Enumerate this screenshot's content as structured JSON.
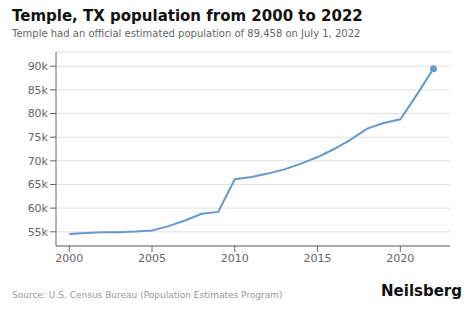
{
  "chart_data": {
    "type": "line",
    "title": "Temple, TX population from 2000 to 2022",
    "subtitle": "Temple had an official estimated population of 89,458 on July 1, 2022",
    "annotations": [
      "Source: U.S. Census Bureau (Population Estimates Program)",
      "Neilsberg"
    ],
    "x": [
      2000,
      2001,
      2002,
      2003,
      2004,
      2005,
      2006,
      2007,
      2008,
      2009,
      2010,
      2011,
      2012,
      2013,
      2014,
      2015,
      2016,
      2017,
      2018,
      2019,
      2020,
      2021,
      2022
    ],
    "values": [
      54514,
      54741,
      54898,
      54900,
      55050,
      55300,
      56200,
      57400,
      58800,
      59200,
      66102,
      66600,
      67300,
      68200,
      69400,
      70800,
      72500,
      74500,
      76800,
      78000,
      78780,
      84000,
      89458
    ],
    "color": "#6699cc",
    "xlim": [
      1999.2,
      2023.0
    ],
    "xticks": [
      2000,
      2005,
      2010,
      2015,
      2020
    ],
    "ylim": [
      52000,
      93000
    ],
    "yticks": [
      {
        "value": 55000,
        "label": "55k"
      },
      {
        "value": 60000,
        "label": "60k"
      },
      {
        "value": 65000,
        "label": "65k"
      },
      {
        "value": 70000,
        "label": "70k"
      },
      {
        "value": 75000,
        "label": "75k"
      },
      {
        "value": 80000,
        "label": "80k"
      },
      {
        "value": 85000,
        "label": "85k"
      },
      {
        "value": 90000,
        "label": "90k"
      }
    ],
    "grid": true
  }
}
